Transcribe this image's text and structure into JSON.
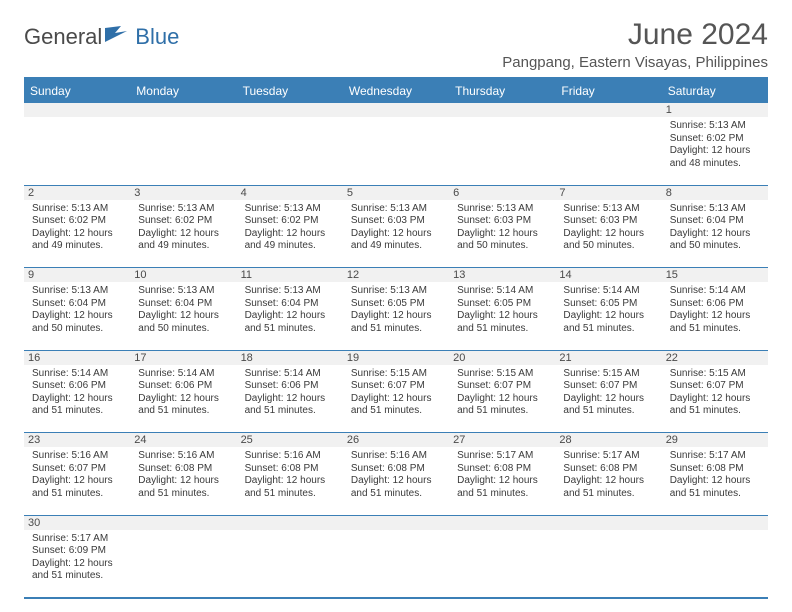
{
  "brand": {
    "part1": "General",
    "part2": "Blue"
  },
  "header": {
    "title": "June 2024",
    "location": "Pangpang, Eastern Visayas, Philippines"
  },
  "styling": {
    "header_bg": "#3b7fb6",
    "header_text": "#ffffff",
    "daynum_bg": "#f1f1f1",
    "border_color": "#3b7fb6",
    "body_text": "#3a3a3a",
    "page_bg": "#ffffff",
    "title_fontsize": 30,
    "weekday_fontsize": 12,
    "daynum_fontsize": 11,
    "body_fontsize": 10,
    "columns": 7
  },
  "weekdays": [
    "Sunday",
    "Monday",
    "Tuesday",
    "Wednesday",
    "Thursday",
    "Friday",
    "Saturday"
  ],
  "labels": {
    "sunrise": "Sunrise:",
    "sunset": "Sunset:",
    "daylight": "Daylight:"
  },
  "first_weekday_index": 6,
  "days": [
    {
      "n": 1,
      "sunrise": "5:13 AM",
      "sunset": "6:02 PM",
      "daylight": "12 hours and 48 minutes."
    },
    {
      "n": 2,
      "sunrise": "5:13 AM",
      "sunset": "6:02 PM",
      "daylight": "12 hours and 49 minutes."
    },
    {
      "n": 3,
      "sunrise": "5:13 AM",
      "sunset": "6:02 PM",
      "daylight": "12 hours and 49 minutes."
    },
    {
      "n": 4,
      "sunrise": "5:13 AM",
      "sunset": "6:02 PM",
      "daylight": "12 hours and 49 minutes."
    },
    {
      "n": 5,
      "sunrise": "5:13 AM",
      "sunset": "6:03 PM",
      "daylight": "12 hours and 49 minutes."
    },
    {
      "n": 6,
      "sunrise": "5:13 AM",
      "sunset": "6:03 PM",
      "daylight": "12 hours and 50 minutes."
    },
    {
      "n": 7,
      "sunrise": "5:13 AM",
      "sunset": "6:03 PM",
      "daylight": "12 hours and 50 minutes."
    },
    {
      "n": 8,
      "sunrise": "5:13 AM",
      "sunset": "6:04 PM",
      "daylight": "12 hours and 50 minutes."
    },
    {
      "n": 9,
      "sunrise": "5:13 AM",
      "sunset": "6:04 PM",
      "daylight": "12 hours and 50 minutes."
    },
    {
      "n": 10,
      "sunrise": "5:13 AM",
      "sunset": "6:04 PM",
      "daylight": "12 hours and 50 minutes."
    },
    {
      "n": 11,
      "sunrise": "5:13 AM",
      "sunset": "6:04 PM",
      "daylight": "12 hours and 51 minutes."
    },
    {
      "n": 12,
      "sunrise": "5:13 AM",
      "sunset": "6:05 PM",
      "daylight": "12 hours and 51 minutes."
    },
    {
      "n": 13,
      "sunrise": "5:14 AM",
      "sunset": "6:05 PM",
      "daylight": "12 hours and 51 minutes."
    },
    {
      "n": 14,
      "sunrise": "5:14 AM",
      "sunset": "6:05 PM",
      "daylight": "12 hours and 51 minutes."
    },
    {
      "n": 15,
      "sunrise": "5:14 AM",
      "sunset": "6:06 PM",
      "daylight": "12 hours and 51 minutes."
    },
    {
      "n": 16,
      "sunrise": "5:14 AM",
      "sunset": "6:06 PM",
      "daylight": "12 hours and 51 minutes."
    },
    {
      "n": 17,
      "sunrise": "5:14 AM",
      "sunset": "6:06 PM",
      "daylight": "12 hours and 51 minutes."
    },
    {
      "n": 18,
      "sunrise": "5:14 AM",
      "sunset": "6:06 PM",
      "daylight": "12 hours and 51 minutes."
    },
    {
      "n": 19,
      "sunrise": "5:15 AM",
      "sunset": "6:07 PM",
      "daylight": "12 hours and 51 minutes."
    },
    {
      "n": 20,
      "sunrise": "5:15 AM",
      "sunset": "6:07 PM",
      "daylight": "12 hours and 51 minutes."
    },
    {
      "n": 21,
      "sunrise": "5:15 AM",
      "sunset": "6:07 PM",
      "daylight": "12 hours and 51 minutes."
    },
    {
      "n": 22,
      "sunrise": "5:15 AM",
      "sunset": "6:07 PM",
      "daylight": "12 hours and 51 minutes."
    },
    {
      "n": 23,
      "sunrise": "5:16 AM",
      "sunset": "6:07 PM",
      "daylight": "12 hours and 51 minutes."
    },
    {
      "n": 24,
      "sunrise": "5:16 AM",
      "sunset": "6:08 PM",
      "daylight": "12 hours and 51 minutes."
    },
    {
      "n": 25,
      "sunrise": "5:16 AM",
      "sunset": "6:08 PM",
      "daylight": "12 hours and 51 minutes."
    },
    {
      "n": 26,
      "sunrise": "5:16 AM",
      "sunset": "6:08 PM",
      "daylight": "12 hours and 51 minutes."
    },
    {
      "n": 27,
      "sunrise": "5:17 AM",
      "sunset": "6:08 PM",
      "daylight": "12 hours and 51 minutes."
    },
    {
      "n": 28,
      "sunrise": "5:17 AM",
      "sunset": "6:08 PM",
      "daylight": "12 hours and 51 minutes."
    },
    {
      "n": 29,
      "sunrise": "5:17 AM",
      "sunset": "6:08 PM",
      "daylight": "12 hours and 51 minutes."
    },
    {
      "n": 30,
      "sunrise": "5:17 AM",
      "sunset": "6:09 PM",
      "daylight": "12 hours and 51 minutes."
    }
  ]
}
